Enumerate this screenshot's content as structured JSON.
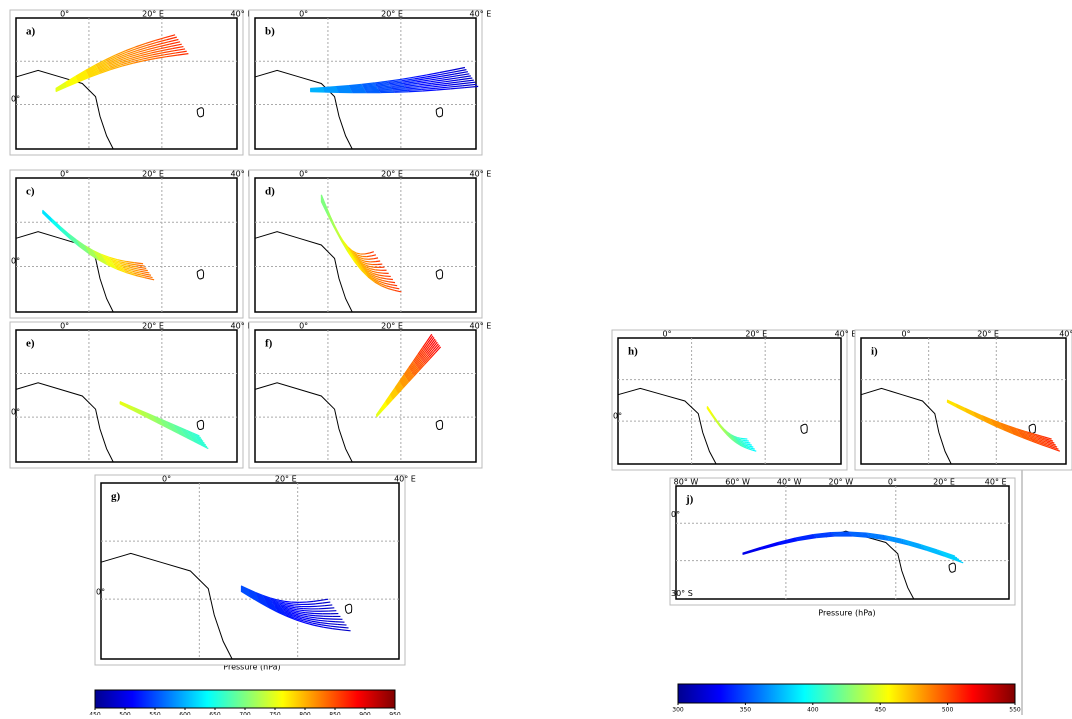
{
  "panels": [
    {
      "label": "a)",
      "xticks": [
        "0°",
        "20° E",
        "40° E"
      ],
      "yticks": [
        "0°"
      ]
    },
    {
      "label": "b)",
      "xticks": [
        "0°",
        "20° E",
        "40° E"
      ],
      "yticks": []
    },
    {
      "label": "c)",
      "xticks": [
        "0°",
        "20° E",
        "40° E"
      ],
      "yticks": [
        "0°"
      ]
    },
    {
      "label": "d)",
      "xticks": [
        "0°",
        "20° E",
        "40° E"
      ],
      "yticks": []
    },
    {
      "label": "e)",
      "xticks": [
        "0°",
        "20° E",
        "40° E"
      ],
      "yticks": [
        "0°"
      ]
    },
    {
      "label": "f)",
      "xticks": [
        "0°",
        "20° E",
        "40° E"
      ],
      "yticks": []
    },
    {
      "label": "g)",
      "xticks": [
        "0°",
        "20° E",
        "40° E"
      ],
      "yticks": [
        "0°"
      ]
    },
    {
      "label": "h)",
      "xticks": [
        "0°",
        "20° E",
        "40° E"
      ],
      "yticks": [
        "0°"
      ]
    },
    {
      "label": "i)",
      "xticks": [
        "0°",
        "20° E",
        "40° E"
      ],
      "yticks": []
    },
    {
      "label": "j)",
      "xticks": [
        "80° W",
        "60° W",
        "40° W",
        "20° W",
        "0°",
        "20° E",
        "40° E"
      ],
      "yticks": [
        "0°",
        "30° S"
      ]
    }
  ],
  "axis_title_left": "Pressure (hPa)",
  "axis_title_right": "Pressure (hPa)",
  "colorbars": [
    {
      "range": [
        450,
        950
      ],
      "ticks": [
        450,
        500,
        550,
        600,
        650,
        700,
        750,
        800,
        850,
        900,
        950
      ]
    },
    {
      "range": [
        300,
        550
      ],
      "ticks": [
        300,
        350,
        400,
        450,
        500,
        550
      ]
    }
  ]
}
